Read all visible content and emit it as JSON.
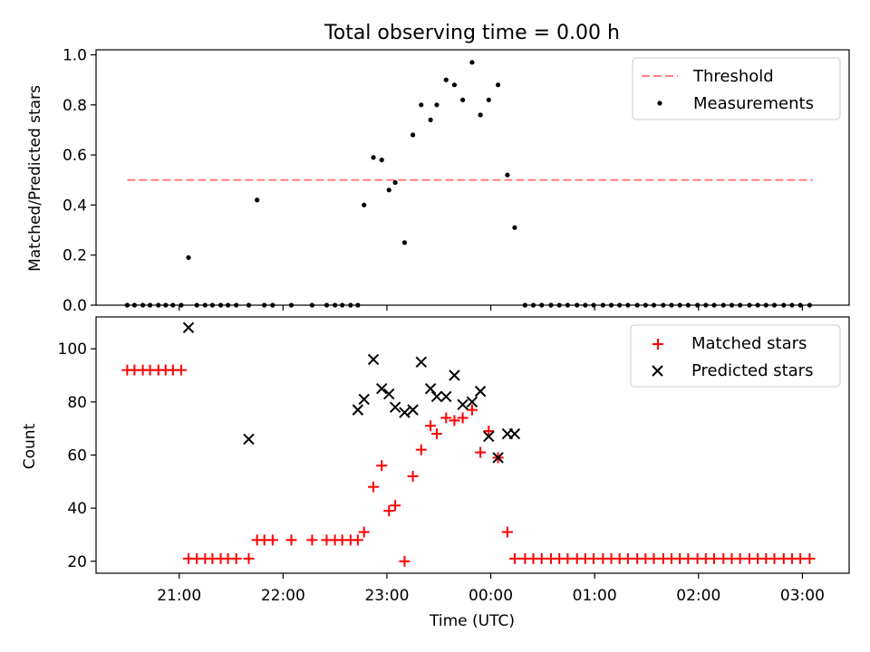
{
  "figure_title": "Total observing time = 0.00 h",
  "colors": {
    "threshold": "#ff7f7f",
    "measurements": "#000000",
    "matched": "#ff0000",
    "predicted": "#000000"
  },
  "chart_data": [
    {
      "type": "scatter",
      "title": "Total observing time = 0.00 h",
      "xlabel": "",
      "ylabel": "Matched/Predicted stars",
      "x_unit": "hours after 00:00 UTC (negative = previous day)",
      "xlim": [
        -3.8,
        3.45
      ],
      "ylim": [
        0.0,
        1.02
      ],
      "yticks": [
        "0.0",
        "0.2",
        "0.4",
        "0.6",
        "0.8",
        "1.0"
      ],
      "legend_position": "top-right",
      "legend": [
        "Threshold",
        "Measurements"
      ],
      "threshold": {
        "name": "Threshold",
        "value": 0.5,
        "x_range": [
          -3.5,
          3.1
        ],
        "style": "dashed"
      },
      "series": [
        {
          "name": "Measurements",
          "marker": "dot",
          "x": [
            -3.5,
            -3.43,
            -3.35,
            -3.28,
            -3.2,
            -3.13,
            -3.06,
            -2.98,
            -2.91,
            -2.83,
            -2.75,
            -2.68,
            -2.6,
            -2.53,
            -2.45,
            -2.33,
            -2.25,
            -2.18,
            -2.1,
            -1.92,
            -1.72,
            -1.58,
            -1.5,
            -1.43,
            -1.35,
            -1.28,
            -1.22,
            -1.13,
            -1.05,
            -0.98,
            -0.92,
            -0.83,
            -0.75,
            -0.67,
            -0.58,
            -0.52,
            -0.43,
            -0.35,
            -0.27,
            -0.18,
            -0.1,
            -0.02,
            0.07,
            0.16,
            0.23,
            0.33,
            0.41,
            0.49,
            0.58,
            0.66,
            0.74,
            0.83,
            0.91,
            0.99,
            1.08,
            1.16,
            1.24,
            1.32,
            1.41,
            1.49,
            1.57,
            1.66,
            1.74,
            1.82,
            1.9,
            1.99,
            2.07,
            2.15,
            2.24,
            2.32,
            2.4,
            2.49,
            2.57,
            2.65,
            2.73,
            2.82,
            2.9,
            2.98,
            3.07
          ],
          "y": [
            0,
            0,
            0,
            0,
            0,
            0,
            0,
            0,
            0.19,
            0,
            0,
            0,
            0,
            0,
            0,
            0,
            0.42,
            0,
            0,
            0,
            0,
            0,
            0,
            0,
            0,
            0,
            0.4,
            0.59,
            0.58,
            0.46,
            0.49,
            0.25,
            0.68,
            0.8,
            0.74,
            0.8,
            0.9,
            0.88,
            0.82,
            0.97,
            0.76,
            0.82,
            0.88,
            0.52,
            0.31,
            0,
            0,
            0,
            0,
            0,
            0,
            0,
            0,
            0,
            0,
            0,
            0,
            0,
            0,
            0,
            0,
            0,
            0,
            0,
            0,
            0,
            0,
            0,
            0,
            0,
            0,
            0,
            0,
            0,
            0,
            0,
            0,
            0,
            0
          ]
        }
      ]
    },
    {
      "type": "scatter",
      "title": "",
      "xlabel": "Time (UTC)",
      "ylabel": "Count",
      "x_unit": "hours after 00:00 UTC (negative = previous day)",
      "xlim": [
        -3.8,
        3.45
      ],
      "ylim": [
        15.5,
        112
      ],
      "xticks": [
        {
          "v": -3,
          "label": "21:00"
        },
        {
          "v": -2,
          "label": "22:00"
        },
        {
          "v": -1,
          "label": "23:00"
        },
        {
          "v": 0,
          "label": "00:00"
        },
        {
          "v": 1,
          "label": "01:00"
        },
        {
          "v": 2,
          "label": "02:00"
        },
        {
          "v": 3,
          "label": "03:00"
        }
      ],
      "yticks": [
        "20",
        "40",
        "60",
        "80",
        "100"
      ],
      "legend_position": "top-right",
      "legend": [
        "Matched stars",
        "Predicted stars"
      ],
      "series": [
        {
          "name": "Matched stars",
          "marker": "plus",
          "x": [
            -3.5,
            -3.43,
            -3.35,
            -3.28,
            -3.2,
            -3.13,
            -3.06,
            -2.98,
            -2.91,
            -2.83,
            -2.75,
            -2.68,
            -2.6,
            -2.53,
            -2.45,
            -2.33,
            -2.25,
            -2.18,
            -2.1,
            -1.92,
            -1.72,
            -1.58,
            -1.5,
            -1.43,
            -1.35,
            -1.28,
            -1.22,
            -1.13,
            -1.05,
            -0.98,
            -0.92,
            -0.83,
            -0.75,
            -0.67,
            -0.58,
            -0.52,
            -0.43,
            -0.35,
            -0.27,
            -0.18,
            -0.1,
            -0.02,
            0.07,
            0.16,
            0.23,
            0.33,
            0.41,
            0.49,
            0.58,
            0.66,
            0.74,
            0.83,
            0.91,
            0.99,
            1.08,
            1.16,
            1.24,
            1.32,
            1.41,
            1.49,
            1.57,
            1.66,
            1.74,
            1.82,
            1.9,
            1.99,
            2.07,
            2.15,
            2.24,
            2.32,
            2.4,
            2.49,
            2.57,
            2.65,
            2.73,
            2.82,
            2.9,
            2.98,
            3.07
          ],
          "y": [
            92,
            92,
            92,
            92,
            92,
            92,
            92,
            92,
            21,
            21,
            21,
            21,
            21,
            21,
            21,
            21,
            28,
            28,
            28,
            28,
            28,
            28,
            28,
            28,
            28,
            28,
            31,
            48,
            56,
            39,
            41,
            20,
            52,
            62,
            71,
            68,
            74,
            73,
            74,
            77,
            61,
            69,
            59,
            31,
            21,
            21,
            21,
            21,
            21,
            21,
            21,
            21,
            21,
            21,
            21,
            21,
            21,
            21,
            21,
            21,
            21,
            21,
            21,
            21,
            21,
            21,
            21,
            21,
            21,
            21,
            21,
            21,
            21,
            21,
            21,
            21,
            21,
            21,
            21
          ]
        },
        {
          "name": "Predicted stars",
          "marker": "x",
          "x": [
            -2.91,
            -2.33,
            -1.28,
            -1.22,
            -1.13,
            -1.05,
            -0.98,
            -0.92,
            -0.83,
            -0.75,
            -0.67,
            -0.58,
            -0.52,
            -0.43,
            -0.35,
            -0.27,
            -0.18,
            -0.1,
            -0.02,
            0.07,
            0.16,
            0.23
          ],
          "y": [
            108,
            66,
            77,
            81,
            96,
            85,
            83,
            78,
            76,
            77,
            95,
            85,
            82,
            82,
            90,
            79,
            80,
            84,
            67,
            59,
            68,
            68
          ]
        }
      ]
    }
  ]
}
